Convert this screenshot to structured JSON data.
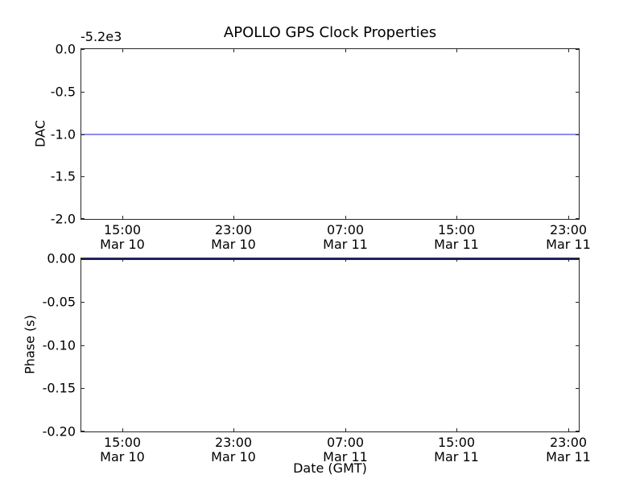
{
  "figure_title": "APOLLO GPS Clock Properties",
  "chart_data": [
    {
      "id": "dac-subplot",
      "type": "line",
      "title": "APOLLO GPS Clock Properties",
      "ylabel": "DAC",
      "y_axis_offset_text": "-5.2e3",
      "ylim": [
        -2.0,
        0.0
      ],
      "y_tick_labels": [
        "0.0",
        "-0.5",
        "-1.0",
        "-1.5",
        "-2.0"
      ],
      "x_tick_labels": [
        {
          "time": "15:00",
          "date": "Mar 10"
        },
        {
          "time": "23:00",
          "date": "Mar 10"
        },
        {
          "time": "07:00",
          "date": "Mar 11"
        },
        {
          "time": "15:00",
          "date": "Mar 11"
        },
        {
          "time": "23:00",
          "date": "Mar 11"
        }
      ],
      "grid": false,
      "legend": null,
      "series": [
        {
          "name": "dac-value-line",
          "style": "solid",
          "color": "#8a8dee",
          "constant_y": -1.0,
          "note": "flat horizontal line spanning full x-range at DAC = -1.0 (offset -5.2e3, i.e. -5201)"
        }
      ]
    },
    {
      "id": "phase-subplot",
      "type": "line",
      "title": "",
      "xlabel": "Date (GMT)",
      "ylabel": "Phase (s)",
      "ylim": [
        -0.2,
        0.0
      ],
      "y_tick_labels": [
        "0.00",
        "-0.05",
        "-0.10",
        "-0.15",
        "-0.20"
      ],
      "x_tick_labels": [
        {
          "time": "15:00",
          "date": "Mar 10"
        },
        {
          "time": "23:00",
          "date": "Mar 10"
        },
        {
          "time": "07:00",
          "date": "Mar 11"
        },
        {
          "time": "15:00",
          "date": "Mar 11"
        },
        {
          "time": "23:00",
          "date": "Mar 11"
        }
      ],
      "grid": false,
      "legend": null,
      "series": [
        {
          "name": "phase-value-line",
          "style": "solid",
          "color": "#1e1e82",
          "constant_y": 0.0,
          "note": "flat horizontal line spanning full x-range at Phase = 0.00 s, overlapping top spine"
        }
      ]
    }
  ]
}
